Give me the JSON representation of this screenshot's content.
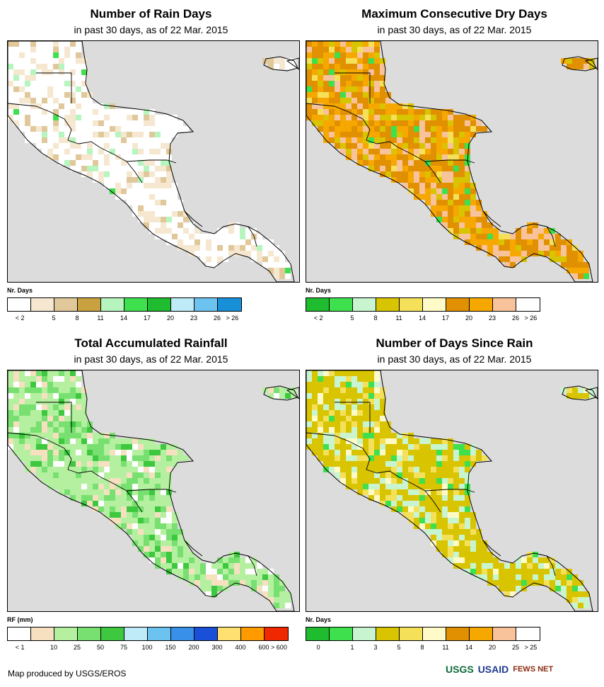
{
  "panels": [
    {
      "title": "Number of Rain Days",
      "subtitle": "in past 30 days, as of 22 Mar. 2015",
      "legend_title": "Nr. Days",
      "legend_colors": [
        "#ffffff",
        "#f6e8d0",
        "#e0c89a",
        "#c9a140",
        "#b6f5be",
        "#3ee04e",
        "#1ebc2e",
        "#bfeaf7",
        "#6cc3ef",
        "#1890d8"
      ],
      "legend_labels": [
        "< 2",
        "5",
        "8",
        "11",
        "14",
        "17",
        "20",
        "23",
        "26",
        "> 26"
      ],
      "map_palette": [
        "#ffffff",
        "#f6e8d0",
        "#e0c89a",
        "#b6f5be",
        "#3ee04e"
      ]
    },
    {
      "title": "Maximum Consecutive Dry Days",
      "subtitle": "in past 30 days, as of 22 Mar. 2015",
      "legend_title": "Nr. Days",
      "legend_colors": [
        "#1ebc2e",
        "#3ee04e",
        "#c8f5d0",
        "#d8c400",
        "#f5e05a",
        "#fffbc8",
        "#e09000",
        "#f7a800",
        "#f8c29a",
        "#ffffff"
      ],
      "legend_labels": [
        "< 2",
        "5",
        "8",
        "11",
        "14",
        "17",
        "20",
        "23",
        "26",
        "> 26"
      ],
      "map_palette": [
        "#e09000",
        "#f7a800",
        "#f8c29a",
        "#d8c400",
        "#f5e05a",
        "#3ee04e"
      ]
    },
    {
      "title": "Total Accumulated Rainfall",
      "subtitle": "in past 30 days, as of 22 Mar. 2015",
      "legend_title": "RF (mm)",
      "legend_colors": [
        "#ffffff",
        "#f6e0c0",
        "#b4f0a0",
        "#78e070",
        "#3ec840",
        "#bfeaf7",
        "#6cc3ef",
        "#3890e8",
        "#1a50d8",
        "#ffe070",
        "#ff9a00",
        "#f02800"
      ],
      "legend_labels": [
        "< 1",
        "10",
        "25",
        "50",
        "75",
        "100",
        "150",
        "200",
        "300",
        "400",
        "600",
        "> 600"
      ],
      "map_palette": [
        "#b4f0a0",
        "#78e070",
        "#ffffff",
        "#f6e0c0",
        "#3ec840"
      ]
    },
    {
      "title": "Number of Days Since Rain",
      "subtitle": "in past 30 days, as of 22 Mar. 2015",
      "legend_title": "Nr. Days",
      "legend_colors": [
        "#1ebc2e",
        "#3ee04e",
        "#c8f5d0",
        "#d8c400",
        "#f5e05a",
        "#fffbc8",
        "#e09000",
        "#f7a800",
        "#f8c29a",
        "#ffffff"
      ],
      "legend_labels": [
        "0",
        "1",
        "3",
        "5",
        "8",
        "11",
        "14",
        "20",
        "25",
        "> 25"
      ],
      "map_palette": [
        "#d8c400",
        "#c8f5d0",
        "#f5e05a",
        "#fffbc8",
        "#3ee04e"
      ]
    }
  ],
  "footer": {
    "credit": "Map produced by USGS/EROS"
  },
  "logos": {
    "usgs": "USGS",
    "usaid": "USAID",
    "fews": "FEWS NET"
  }
}
